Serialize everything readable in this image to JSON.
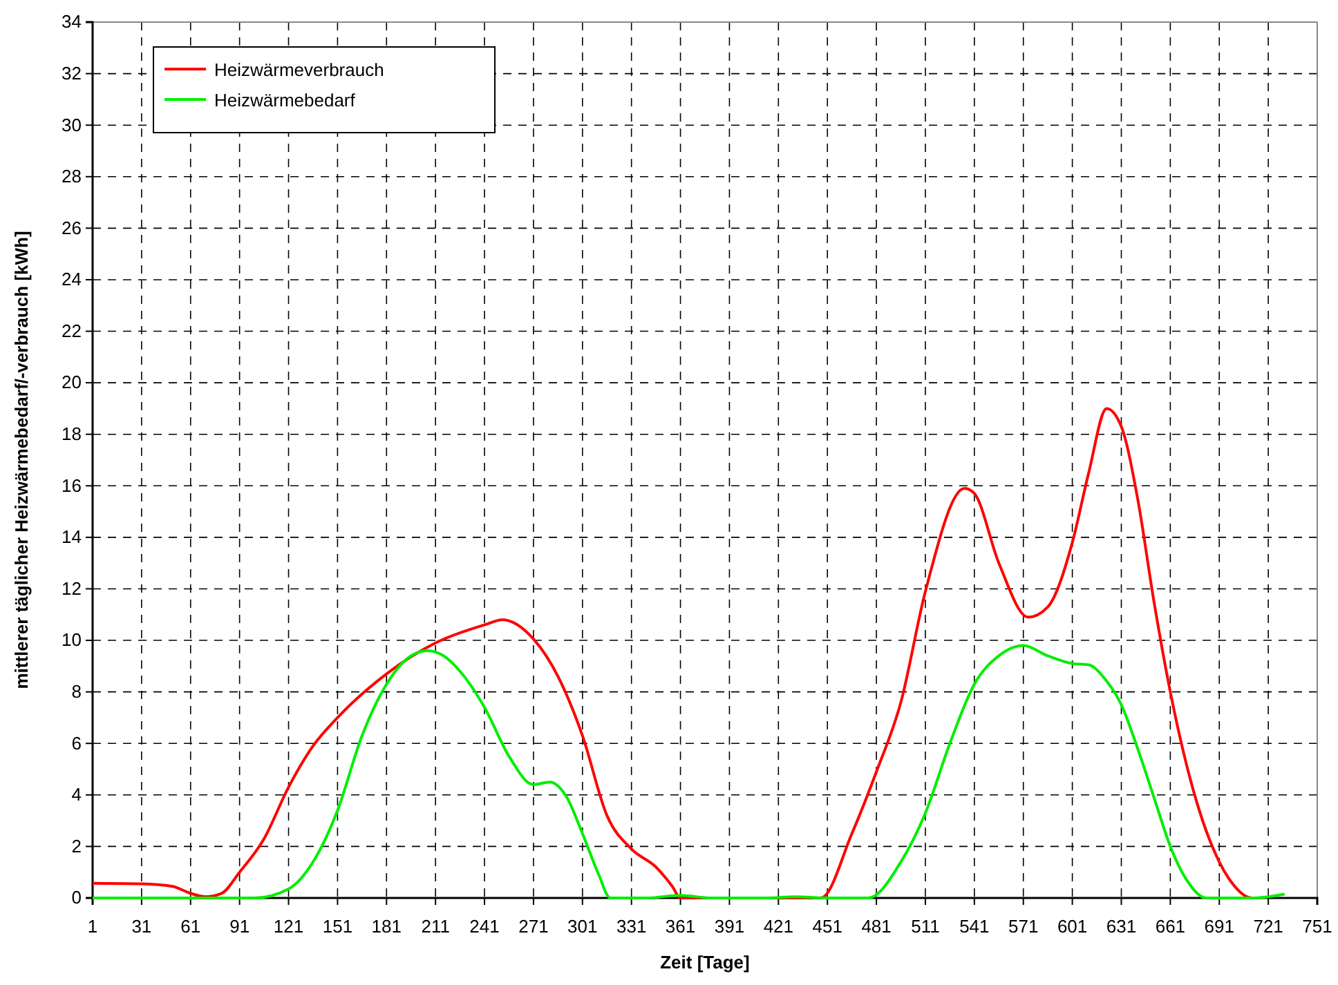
{
  "chart_data": {
    "type": "line",
    "xlabel": "Zeit [Tage]",
    "ylabel": "mittlerer täglicher Heizwärmebedarf/-verbrauch [kWh]",
    "xlim": [
      1,
      751
    ],
    "xticks": [
      1,
      31,
      61,
      91,
      121,
      151,
      181,
      211,
      241,
      271,
      301,
      331,
      361,
      391,
      421,
      451,
      481,
      511,
      541,
      571,
      601,
      631,
      661,
      691,
      721,
      751
    ],
    "ylim": [
      0,
      34
    ],
    "yticks": [
      0,
      2,
      4,
      6,
      8,
      10,
      12,
      14,
      16,
      18,
      20,
      22,
      24,
      26,
      28,
      30,
      32,
      34
    ],
    "grid": true,
    "legend": "top left",
    "marker": "none",
    "line_style": "solid",
    "series": [
      {
        "name": "Heizwärmeverbrauch",
        "color": "#ff0000",
        "x": [
          1,
          31,
          50,
          61,
          70,
          80,
          91,
          106,
          121,
          136,
          151,
          181,
          211,
          241,
          252,
          271,
          286,
          301,
          316,
          331,
          346,
          356,
          361,
          400,
          447,
          466,
          481,
          496,
          511,
          535,
          541,
          556,
          574,
          586,
          601,
          611,
          622,
          631,
          641,
          651,
          661,
          675,
          691,
          698,
          711,
          716
        ],
        "values": [
          0.57,
          0.55,
          0.45,
          0.18,
          0.05,
          0.18,
          1.0,
          2.3,
          4.3,
          5.9,
          7.0,
          8.7,
          9.9,
          10.6,
          10.8,
          10.05,
          8.6,
          6.3,
          3.2,
          1.9,
          1.2,
          0.45,
          0,
          0,
          0,
          2.5,
          4.9,
          7.6,
          11.9,
          15.9,
          15.7,
          13.0,
          10.9,
          11.3,
          13.8,
          16.5,
          19.0,
          18.3,
          15.5,
          11.5,
          8.0,
          4.2,
          1.4,
          0.65,
          0,
          0
        ]
      },
      {
        "name": "Heizwärmebedarf",
        "color": "#00ee00",
        "x": [
          1,
          100,
          121,
          136,
          151,
          166,
          181,
          196,
          206,
          216,
          226,
          241,
          256,
          271,
          281,
          291,
          301,
          311,
          318,
          340,
          361,
          380,
          415,
          431,
          450,
          476,
          496,
          511,
          526,
          541,
          556,
          571,
          586,
          601,
          611,
          621,
          631,
          641,
          651,
          661,
          671,
          683,
          711,
          731
        ],
        "values": [
          0,
          0,
          0.35,
          1.4,
          3.4,
          6.3,
          8.3,
          9.4,
          9.6,
          9.4,
          8.8,
          7.4,
          5.5,
          4.4,
          4.5,
          3.95,
          2.5,
          0.9,
          0,
          0,
          0.1,
          0,
          0,
          0.05,
          0,
          0,
          1.4,
          3.3,
          6.0,
          8.3,
          9.4,
          9.8,
          9.4,
          9.1,
          9.05,
          8.5,
          7.5,
          5.8,
          3.9,
          2.0,
          0.7,
          0,
          0,
          0.15
        ]
      }
    ]
  }
}
